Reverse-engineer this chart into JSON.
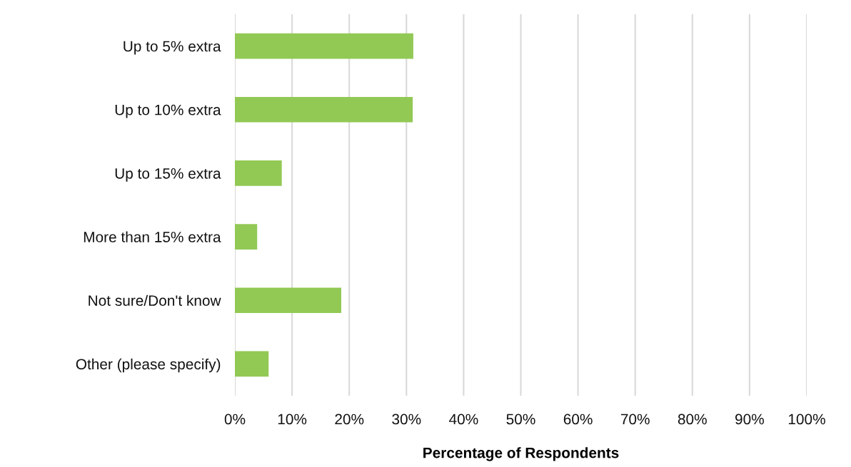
{
  "chart_data": {
    "type": "bar",
    "orientation": "horizontal",
    "xlabel": "Percentage of Respondents",
    "categories": [
      "Up to 5% extra",
      "Up to 10% extra",
      "Up to 15% extra",
      "More than 15% extra",
      "Not sure/Don't know",
      "Other (please specify)"
    ],
    "values": [
      31.2,
      31.1,
      8.2,
      3.9,
      18.6,
      5.9
    ],
    "color": "#92c955",
    "xlim": [
      0,
      100
    ],
    "xticks": [
      {
        "value": 0,
        "label": "0%"
      },
      {
        "value": 10,
        "label": "10%"
      },
      {
        "value": 20,
        "label": "20%"
      },
      {
        "value": 30,
        "label": "30%"
      },
      {
        "value": 40,
        "label": "40%"
      },
      {
        "value": 50,
        "label": "50%"
      },
      {
        "value": 60,
        "label": "60%"
      },
      {
        "value": 70,
        "label": "70%"
      },
      {
        "value": 80,
        "label": "80%"
      },
      {
        "value": 90,
        "label": "90%"
      },
      {
        "value": 100,
        "label": "100%"
      }
    ],
    "grid": "x"
  }
}
